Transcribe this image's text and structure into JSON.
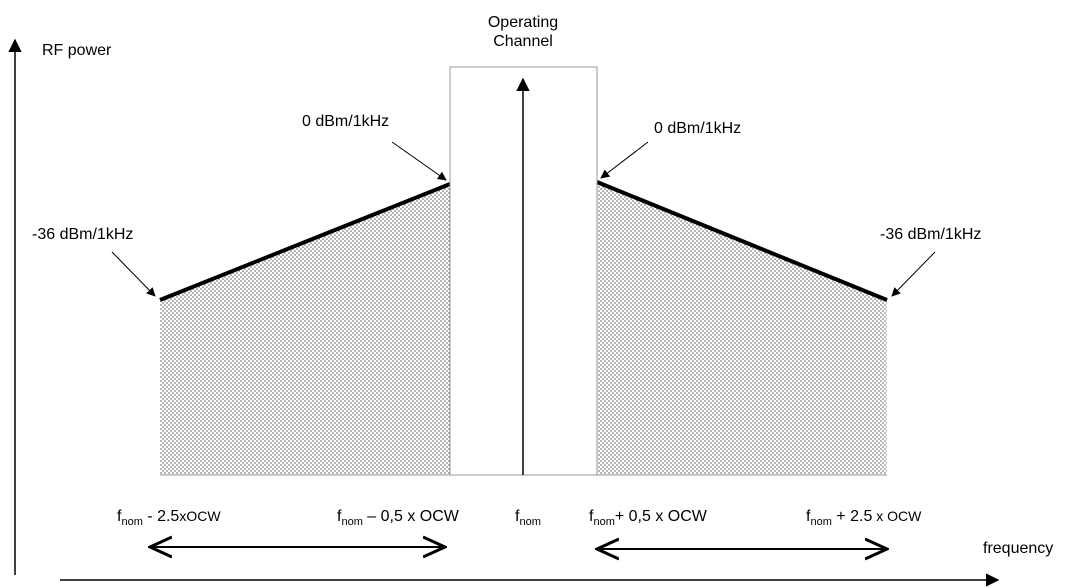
{
  "axes": {
    "y_label": "RF power",
    "x_label": "frequency"
  },
  "channel": {
    "title_line1": "Operating",
    "title_line2": "Channel"
  },
  "levels": {
    "left_top": "0 dBm/1kHz",
    "right_top": "0 dBm/1kHz",
    "left_bottom": "-36 dBm/1kHz",
    "right_bottom": "-36 dBm/1kHz"
  },
  "ticks": {
    "f_base": "f",
    "sub": "nom",
    "left_outer_suffix": " - 2.5",
    "left_outer_unit": "xOCW",
    "left_inner_suffix": " – 0,5 x OCW",
    "center_suffix": "",
    "right_inner_suffix": "+ 0,5 x OCW",
    "right_outer_suffix": " + 2.5",
    "right_outer_unit": " x OCW"
  },
  "colors": {
    "ink": "#000000",
    "channel_border": "#999999",
    "stipple": "#555555"
  }
}
